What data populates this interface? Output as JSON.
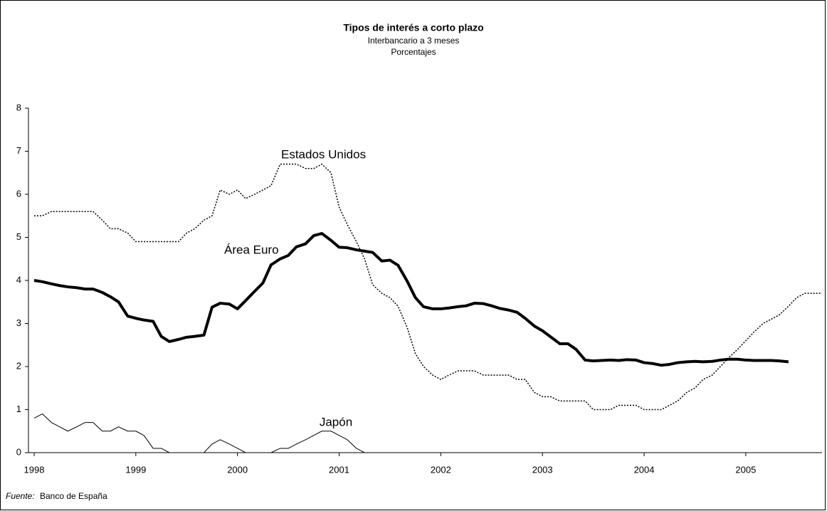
{
  "chart_data": {
    "type": "line",
    "title": "Tipos de interés a corto plazo",
    "subtitle": [
      "Interbancario a 3 meses",
      "Porcentajes"
    ],
    "source": {
      "label": "Fuente:",
      "text": "Banco de España"
    },
    "x": [
      1998.0,
      1998.08,
      1998.17,
      1998.25,
      1998.33,
      1998.42,
      1998.5,
      1998.58,
      1998.67,
      1998.75,
      1998.83,
      1998.92,
      1999.0,
      1999.08,
      1999.17,
      1999.25,
      1999.33,
      1999.42,
      1999.5,
      1999.58,
      1999.67,
      1999.75,
      1999.83,
      1999.92,
      2000.0,
      2000.08,
      2000.17,
      2000.25,
      2000.33,
      2000.42,
      2000.5,
      2000.58,
      2000.67,
      2000.75,
      2000.83,
      2000.92,
      2001.0,
      2001.08,
      2001.17,
      2001.25,
      2001.33,
      2001.42,
      2001.5,
      2001.58,
      2001.67,
      2001.75,
      2001.83,
      2001.92,
      2002.0,
      2002.08,
      2002.17,
      2002.25,
      2002.33,
      2002.42,
      2002.5,
      2002.58,
      2002.67,
      2002.75,
      2002.83,
      2002.92,
      2003.0,
      2003.08,
      2003.17,
      2003.25,
      2003.33,
      2003.42,
      2003.5,
      2003.58,
      2003.67,
      2003.75,
      2003.83,
      2003.92,
      2004.0,
      2004.08,
      2004.17,
      2004.25,
      2004.33,
      2004.42,
      2004.5,
      2004.58,
      2004.67,
      2004.75,
      2004.83,
      2004.92,
      2005.0,
      2005.08,
      2005.17,
      2005.25,
      2005.33,
      2005.42,
      2005.5,
      2005.58,
      2005.67,
      2005.75
    ],
    "series": [
      {
        "name": "Estados Unidos",
        "color": "#000000",
        "style": "dotted",
        "width": 1.5,
        "values": [
          5.5,
          5.5,
          5.6,
          5.6,
          5.6,
          5.6,
          5.6,
          5.6,
          5.4,
          5.2,
          5.2,
          5.1,
          4.9,
          4.9,
          4.9,
          4.9,
          4.9,
          4.9,
          5.1,
          5.2,
          5.4,
          5.5,
          6.1,
          6.0,
          6.1,
          5.9,
          6.0,
          6.1,
          6.2,
          6.7,
          6.7,
          6.7,
          6.6,
          6.6,
          6.7,
          6.5,
          5.7,
          5.3,
          4.9,
          4.5,
          3.9,
          3.7,
          3.6,
          3.4,
          2.9,
          2.3,
          2.0,
          1.8,
          1.7,
          1.8,
          1.9,
          1.9,
          1.9,
          1.8,
          1.8,
          1.8,
          1.8,
          1.7,
          1.7,
          1.4,
          1.3,
          1.3,
          1.2,
          1.2,
          1.2,
          1.2,
          1.0,
          1.0,
          1.0,
          1.1,
          1.1,
          1.1,
          1.0,
          1.0,
          1.0,
          1.1,
          1.2,
          1.4,
          1.5,
          1.7,
          1.8,
          2.0,
          2.2,
          2.4,
          2.6,
          2.8,
          3.0,
          3.1,
          3.2,
          3.4,
          3.6,
          3.7,
          3.7,
          3.7
        ]
      },
      {
        "name": "Área Euro",
        "color": "#000000",
        "style": "solid",
        "width": 4,
        "values": [
          4.0,
          3.97,
          3.92,
          3.88,
          3.85,
          3.83,
          3.8,
          3.8,
          3.72,
          3.62,
          3.5,
          3.17,
          3.12,
          3.08,
          3.05,
          2.7,
          2.58,
          2.63,
          2.68,
          2.7,
          2.73,
          3.38,
          3.47,
          3.45,
          3.34,
          3.53,
          3.75,
          3.94,
          4.36,
          4.5,
          4.58,
          4.78,
          4.85,
          5.04,
          5.09,
          4.93,
          4.77,
          4.76,
          4.71,
          4.68,
          4.65,
          4.45,
          4.47,
          4.35,
          3.98,
          3.6,
          3.39,
          3.34,
          3.34,
          3.36,
          3.39,
          3.41,
          3.47,
          3.46,
          3.41,
          3.35,
          3.31,
          3.26,
          3.12,
          2.94,
          2.83,
          2.69,
          2.53,
          2.53,
          2.4,
          2.15,
          2.13,
          2.14,
          2.15,
          2.14,
          2.16,
          2.15,
          2.09,
          2.07,
          2.03,
          2.05,
          2.09,
          2.11,
          2.12,
          2.11,
          2.12,
          2.15,
          2.17,
          2.17,
          2.15,
          2.14,
          2.14,
          2.14,
          2.13,
          2.11,
          null,
          null,
          null,
          null
        ]
      },
      {
        "name": "Japón",
        "color": "#000000",
        "style": "solid",
        "width": 1,
        "values": [
          0.8,
          0.9,
          0.7,
          0.6,
          0.5,
          0.6,
          0.7,
          0.7,
          0.5,
          0.5,
          0.6,
          0.5,
          0.5,
          0.4,
          0.1,
          0.1,
          0,
          0,
          0,
          0,
          0,
          0.2,
          0.3,
          0.2,
          0.1,
          0,
          0,
          0,
          0,
          0.1,
          0.1,
          0.2,
          0.3,
          0.4,
          0.5,
          0.5,
          0.4,
          0.3,
          0.1,
          0,
          0,
          null,
          null,
          null,
          null,
          null,
          null,
          null,
          null,
          null,
          null,
          null,
          null,
          null,
          null,
          null,
          null,
          null,
          null,
          null,
          null,
          null,
          null,
          null,
          null,
          null,
          null,
          null,
          null,
          null,
          null,
          null,
          null,
          null,
          null,
          null,
          null,
          null,
          null,
          null,
          null,
          null,
          null,
          null,
          null,
          null,
          null,
          null,
          null,
          null,
          null,
          null,
          null,
          null
        ]
      }
    ],
    "xlim": [
      1998,
      2005.75
    ],
    "xticks": [
      1998,
      1999,
      2000,
      2001,
      2002,
      2003,
      2004,
      2005
    ],
    "ylim": [
      0,
      8
    ],
    "yticks": [
      0,
      1,
      2,
      3,
      4,
      5,
      6,
      7,
      8
    ],
    "grid": false
  }
}
